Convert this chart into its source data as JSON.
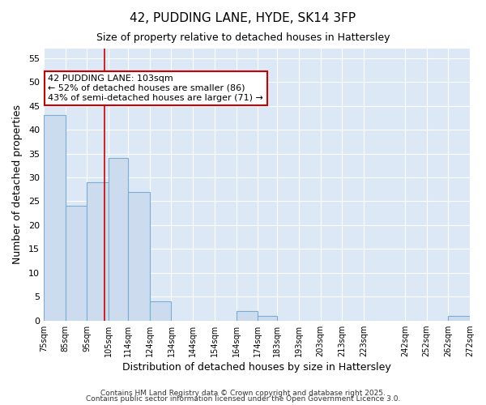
{
  "title": "42, PUDDING LANE, HYDE, SK14 3FP",
  "subtitle": "Size of property relative to detached houses in Hattersley",
  "xlabel": "Distribution of detached houses by size in Hattersley",
  "ylabel": "Number of detached properties",
  "bins": [
    75,
    85,
    95,
    105,
    114,
    124,
    134,
    144,
    154,
    164,
    174,
    183,
    193,
    203,
    213,
    223,
    242,
    252,
    262,
    272
  ],
  "counts": [
    43,
    24,
    29,
    34,
    27,
    4,
    0,
    0,
    0,
    2,
    1,
    0,
    0,
    0,
    0,
    0,
    0,
    0,
    1,
    0
  ],
  "bar_color": "#ccdcee",
  "bar_edge_color": "#7aadd4",
  "vline_x": 103,
  "vline_color": "#cc0000",
  "annotation_text": "42 PUDDING LANE: 103sqm\n← 52% of detached houses are smaller (86)\n43% of semi-detached houses are larger (71) →",
  "annotation_box_facecolor": "#ffffff",
  "annotation_box_edgecolor": "#cc0000",
  "ylim": [
    0,
    57
  ],
  "yticks": [
    0,
    5,
    10,
    15,
    20,
    25,
    30,
    35,
    40,
    45,
    50,
    55
  ],
  "x_tick_labels": [
    "75sqm",
    "85sqm",
    "95sqm",
    "105sqm",
    "114sqm",
    "124sqm",
    "134sqm",
    "144sqm",
    "154sqm",
    "164sqm",
    "174sqm",
    "183sqm",
    "193sqm",
    "203sqm",
    "213sqm",
    "223sqm",
    "242sqm",
    "252sqm",
    "262sqm",
    "272sqm"
  ],
  "fig_bg_color": "#ffffff",
  "plot_bg_color": "#dce8f5",
  "grid_color": "#ffffff",
  "footer1": "Contains HM Land Registry data © Crown copyright and database right 2025.",
  "footer2": "Contains public sector information licensed under the Open Government Licence 3.0."
}
